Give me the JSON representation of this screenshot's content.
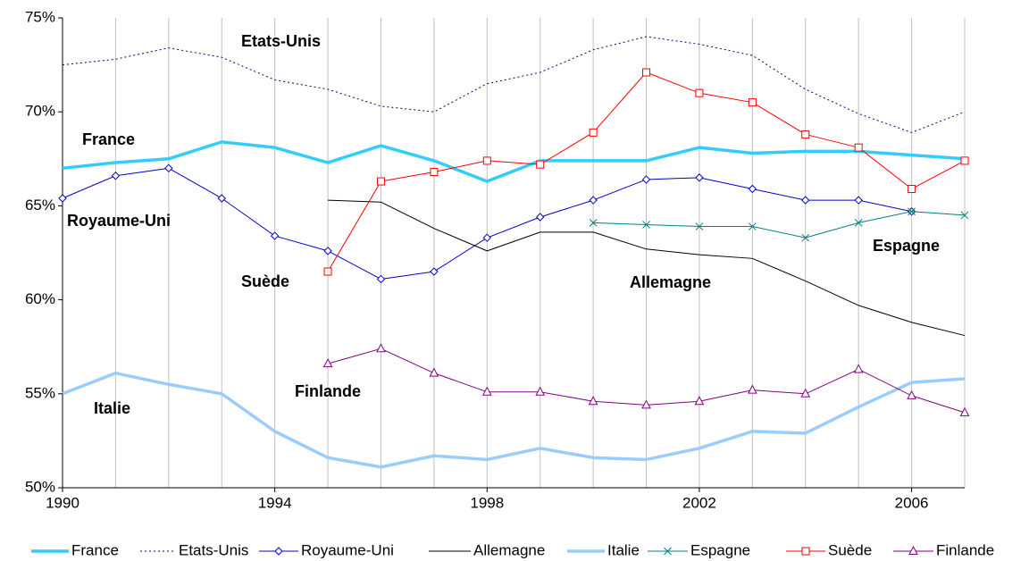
{
  "chart_data": {
    "type": "line",
    "x": [
      1990,
      1991,
      1992,
      1993,
      1994,
      1995,
      1996,
      1997,
      1998,
      1999,
      2000,
      2001,
      2002,
      2003,
      2004,
      2005,
      2006,
      2007
    ],
    "xlim": [
      1990,
      2007
    ],
    "xticks": [
      1990,
      1994,
      1998,
      2002,
      2006
    ],
    "ylim": [
      50,
      75
    ],
    "yticks": [
      {
        "value": 50,
        "label": "50%"
      },
      {
        "value": 55,
        "label": "55%"
      },
      {
        "value": 60,
        "label": "60%"
      },
      {
        "value": 65,
        "label": "65%"
      },
      {
        "value": 70,
        "label": "70%"
      },
      {
        "value": 75,
        "label": "75%"
      }
    ],
    "grid": "x",
    "legend": "bottom",
    "series": [
      {
        "name": "France",
        "color": "#33ccff",
        "width": 3.5,
        "dash": "none",
        "marker": "none",
        "values": [
          67.0,
          67.3,
          67.5,
          68.4,
          68.1,
          67.3,
          68.2,
          67.4,
          66.3,
          67.4,
          67.4,
          67.4,
          68.1,
          67.8,
          67.9,
          67.9,
          67.7,
          67.5
        ]
      },
      {
        "name": "Etats-Unis",
        "color": "#000080",
        "width": 1,
        "dash": "2 3",
        "marker": "none",
        "values": [
          72.5,
          72.8,
          73.4,
          72.9,
          71.7,
          71.2,
          70.3,
          70.0,
          71.5,
          72.1,
          73.3,
          74.0,
          73.6,
          73.0,
          71.2,
          69.9,
          68.9,
          70.0
        ]
      },
      {
        "name": "Royaume-Uni",
        "color": "#0000cc",
        "width": 1,
        "dash": "none",
        "marker": "diamond",
        "values": [
          65.4,
          66.6,
          67.0,
          65.4,
          63.4,
          62.6,
          61.1,
          61.5,
          63.3,
          64.4,
          65.3,
          66.4,
          66.5,
          65.9,
          65.3,
          65.3,
          64.7,
          null
        ]
      },
      {
        "name": "Allemagne",
        "color": "#000000",
        "width": 1,
        "dash": "none",
        "marker": "none",
        "values": [
          null,
          null,
          null,
          null,
          null,
          65.3,
          65.2,
          63.8,
          62.6,
          63.6,
          63.6,
          62.7,
          62.4,
          62.2,
          61.0,
          59.7,
          58.8,
          58.1
        ]
      },
      {
        "name": "Italie",
        "color": "#99ccff",
        "width": 3.5,
        "dash": "none",
        "marker": "none",
        "values": [
          55.0,
          56.1,
          55.5,
          55.0,
          53.0,
          51.6,
          51.1,
          51.7,
          51.5,
          52.1,
          51.6,
          51.5,
          52.1,
          53.0,
          52.9,
          54.3,
          55.6,
          55.8
        ]
      },
      {
        "name": "Espagne",
        "color": "#008080",
        "width": 1,
        "dash": "none",
        "marker": "x",
        "values": [
          null,
          null,
          null,
          null,
          null,
          null,
          null,
          null,
          null,
          null,
          64.1,
          64.0,
          63.9,
          63.9,
          63.3,
          64.1,
          64.7,
          64.5
        ]
      },
      {
        "name": "Suède",
        "color": "#ff0000",
        "width": 1,
        "dash": "none",
        "marker": "square",
        "values": [
          null,
          null,
          null,
          null,
          null,
          61.5,
          66.3,
          66.8,
          67.4,
          67.2,
          68.9,
          72.1,
          71.0,
          70.5,
          68.8,
          68.1,
          65.9,
          67.4
        ]
      },
      {
        "name": "Finlande",
        "color": "#800080",
        "width": 1,
        "dash": "none",
        "marker": "triangle",
        "values": [
          null,
          null,
          null,
          null,
          null,
          56.6,
          57.4,
          56.1,
          55.1,
          55.1,
          54.6,
          54.4,
          54.6,
          55.2,
          55.0,
          56.3,
          54.9,
          54.0
        ]
      }
    ],
    "annotations": [
      "Etats-Unis",
      "France",
      "Royaume-Uni",
      "Suède",
      "Allemagne",
      "Espagne",
      "Finlande",
      "Italie"
    ]
  }
}
